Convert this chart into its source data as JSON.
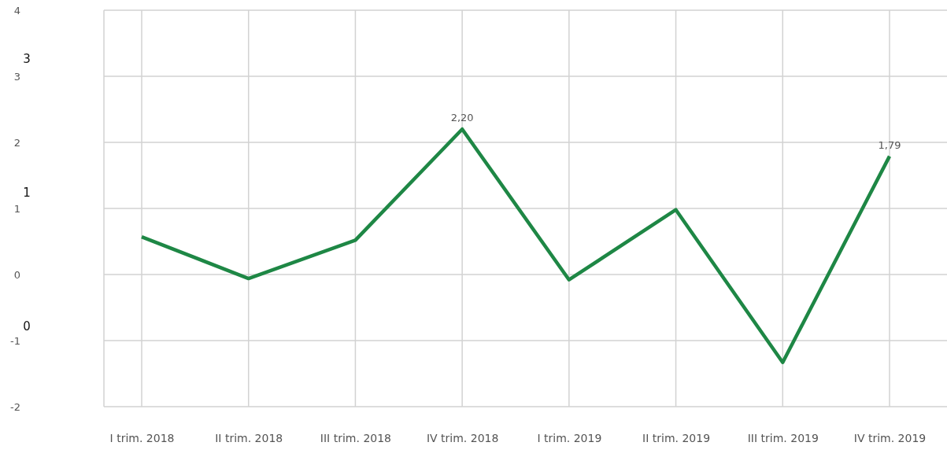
{
  "chart_data": {
    "type": "line",
    "categories": [
      "I trim. 2018",
      "II trim. 2018",
      "III trim. 2018",
      "IV trim. 2018",
      "I trim. 2019",
      "II trim. 2019",
      "III trim. 2019",
      "IV trim. 2019"
    ],
    "values": [
      0.57,
      -0.06,
      0.52,
      2.2,
      -0.08,
      0.98,
      -1.33,
      1.79
    ],
    "value_labels": [
      null,
      null,
      null,
      "2,20",
      null,
      null,
      null,
      "1,79"
    ],
    "color": "#1e8745",
    "ylim": [
      -2,
      4
    ],
    "yticks": [
      -2,
      -1,
      0,
      1,
      2,
      3,
      4
    ],
    "grid": true,
    "annotations": [
      "3",
      "1",
      "0"
    ]
  }
}
